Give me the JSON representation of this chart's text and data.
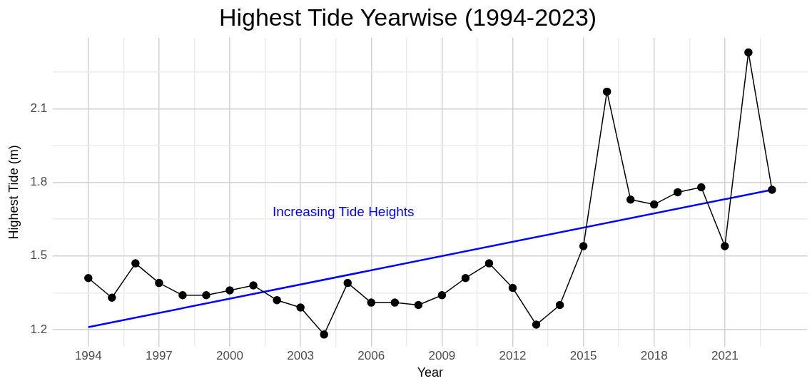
{
  "chart_data": {
    "type": "line",
    "title": "Highest Tide Yearwise (1994-2023)",
    "xlabel": "Year",
    "ylabel": "Highest Tide (m)",
    "x": [
      1994,
      1995,
      1996,
      1997,
      1998,
      1999,
      2000,
      2001,
      2002,
      2003,
      2004,
      2005,
      2006,
      2007,
      2008,
      2009,
      2010,
      2011,
      2012,
      2013,
      2014,
      2015,
      2016,
      2017,
      2018,
      2019,
      2020,
      2021,
      2022,
      2023
    ],
    "series": [
      {
        "color": "#000000",
        "marker": "circle",
        "values": [
          1.41,
          1.33,
          1.47,
          1.39,
          1.34,
          1.34,
          1.36,
          1.38,
          1.32,
          1.29,
          1.18,
          1.39,
          1.31,
          1.31,
          1.3,
          1.34,
          1.41,
          1.47,
          1.37,
          1.22,
          1.3,
          1.54,
          2.17,
          1.73,
          1.71,
          1.76,
          1.78,
          1.54,
          2.33,
          1.77
        ]
      },
      {
        "type": "line",
        "color": "#0000ff",
        "marker": "none",
        "x": [
          1994,
          2023
        ],
        "values": [
          1.21,
          1.77
        ]
      }
    ],
    "annotations": [
      "Increasing Tide Heights"
    ],
    "xlim": [
      1992.5,
      2024.5
    ],
    "ylim": [
      1.13,
      2.39
    ],
    "xticks": [
      1994,
      {
        "value": 1995.5,
        "label": null
      },
      1997,
      {
        "value": 1998.5,
        "label": null
      },
      2000,
      {
        "value": 2001.5,
        "label": null
      },
      2003,
      {
        "value": 2004.5,
        "label": null
      },
      2006,
      {
        "value": 2007.5,
        "label": null
      },
      2009,
      {
        "value": 2010.5,
        "label": null
      },
      2012,
      {
        "value": 2013.5,
        "label": null
      },
      2015,
      {
        "value": 2016.5,
        "label": null
      },
      2018,
      {
        "value": 2019.5,
        "label": null
      },
      2021,
      {
        "value": 2022.5,
        "label": null
      }
    ],
    "yticks": [
      1.2,
      {
        "value": 1.35,
        "label": null
      },
      1.5,
      {
        "value": 1.65,
        "label": null
      },
      1.8,
      {
        "value": 1.95,
        "label": null
      },
      2.1,
      {
        "value": 2.25,
        "label": null
      }
    ],
    "grid": true,
    "legend": false
  }
}
